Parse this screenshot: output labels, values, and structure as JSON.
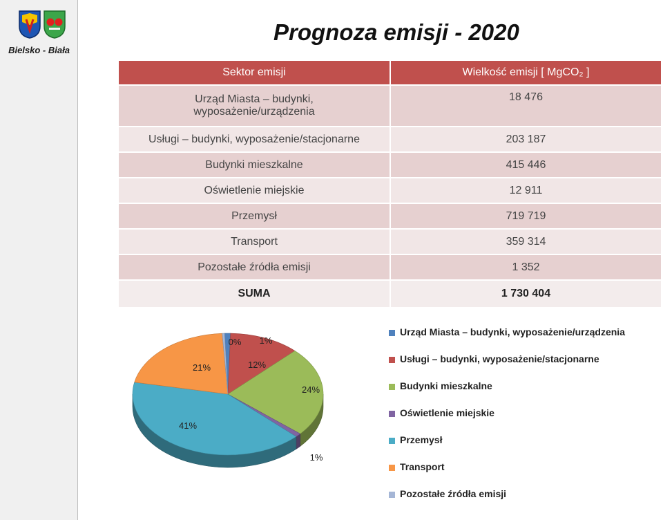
{
  "brand": {
    "name": "Bielsko - Biała"
  },
  "title": "Prognoza emisji - 2020",
  "table": {
    "headers": [
      "Sektor emisji",
      "Wielkość emisji  [ MgCO₂ ]"
    ],
    "rows": [
      {
        "sector": "Urząd Miasta – budynki, wyposażenie/urządzenia",
        "value": "18 476"
      },
      {
        "sector": "Usługi – budynki, wyposażenie/stacjonarne",
        "value": "203 187"
      },
      {
        "sector": "Budynki mieszkalne",
        "value": "415 446"
      },
      {
        "sector": "Oświetlenie miejskie",
        "value": "12 911"
      },
      {
        "sector": "Przemysł",
        "value": "719 719"
      },
      {
        "sector": "Transport",
        "value": "359 314"
      },
      {
        "sector": "Pozostałe źródła emisji",
        "value": "1 352"
      }
    ],
    "sum_label": "SUMA",
    "sum_value": "1 730 404"
  },
  "chart_data": {
    "type": "pie",
    "three_d": true,
    "legend_position": "right",
    "series": [
      {
        "name": "Urząd Miasta – budynki, wyposażenie/urządzenia",
        "value": 1,
        "label": "1%",
        "color": "#4f81bd"
      },
      {
        "name": "Usługi – budynki, wyposażenie/stacjonarne",
        "value": 12,
        "label": "12%",
        "color": "#c0504d"
      },
      {
        "name": "Budynki mieszkalne",
        "value": 24,
        "label": "24%",
        "color": "#9bbb59"
      },
      {
        "name": "Oświetlenie miejskie",
        "value": 1,
        "label": "1%",
        "color": "#8064a2"
      },
      {
        "name": "Przemysł",
        "value": 41,
        "label": "41%",
        "color": "#4bacc6"
      },
      {
        "name": "Transport",
        "value": 21,
        "label": "21%",
        "color": "#f79646"
      },
      {
        "name": "Pozostałe źródła emisji",
        "value": 0,
        "label": "0%",
        "color": "#a5b6d6"
      }
    ]
  }
}
